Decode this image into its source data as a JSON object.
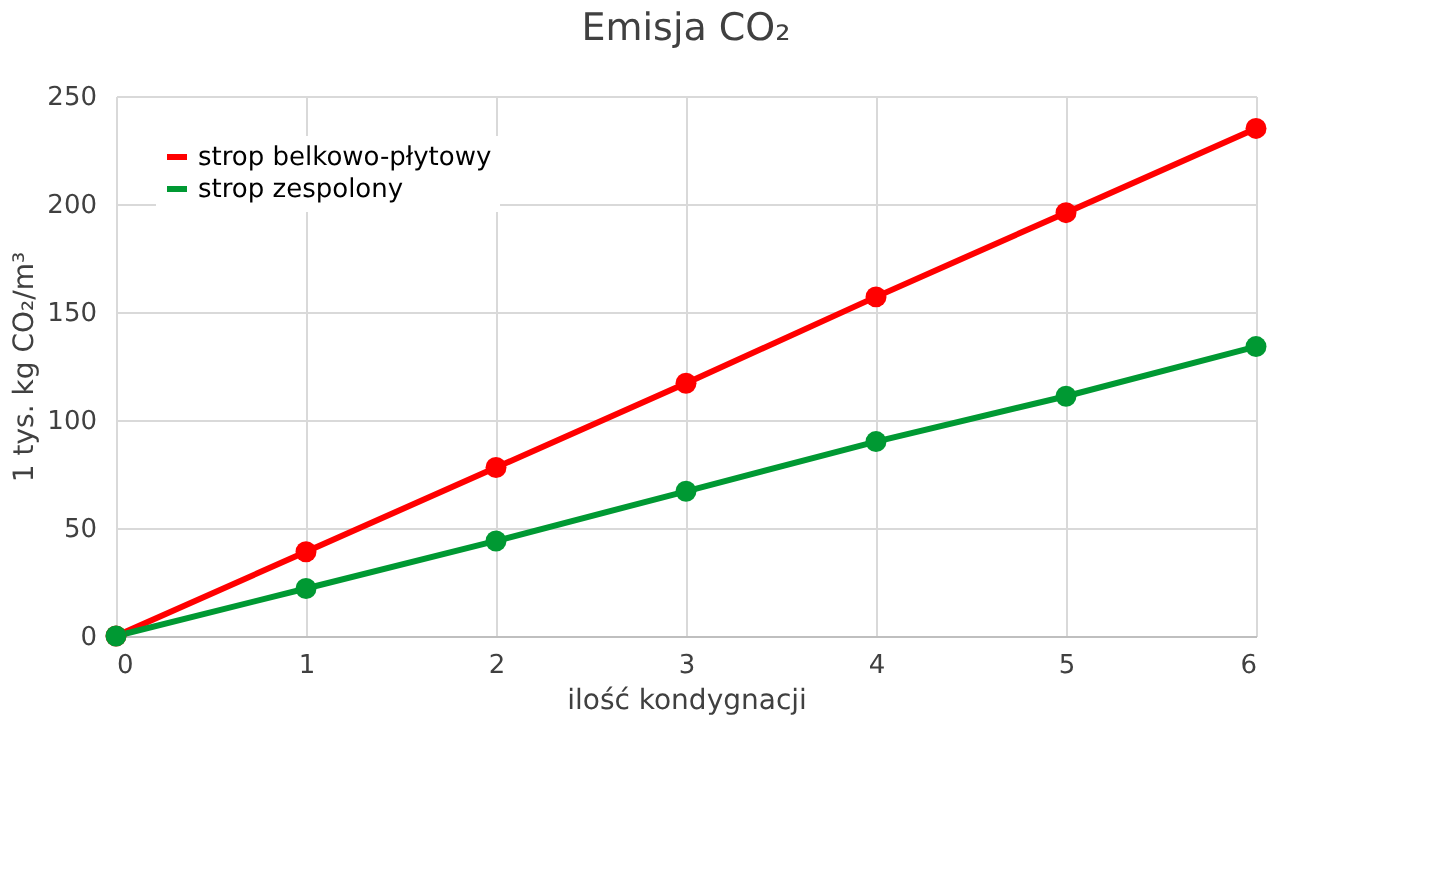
{
  "chart_data": {
    "type": "line",
    "title": "Emisja CO₂",
    "xlabel": "ilość kondygnacji",
    "ylabel": "1 tys. kg CO₂/m³",
    "x": [
      0,
      1,
      2,
      3,
      4,
      5,
      6
    ],
    "series": [
      {
        "name": "strop belkowo-płytowy",
        "color": "#ff0000",
        "values": [
          0,
          39,
          78,
          117,
          157,
          196,
          235
        ]
      },
      {
        "name": "strop zespolony",
        "color": "#009933",
        "values": [
          0,
          22,
          44,
          67,
          90,
          111,
          134
        ]
      }
    ],
    "xlim": [
      0,
      6
    ],
    "xticks": [
      0,
      1,
      2,
      3,
      4,
      5,
      6
    ],
    "ylim": [
      0,
      250
    ],
    "yticks": [
      0,
      50,
      100,
      150,
      200,
      250
    ],
    "grid": true,
    "legend": "top left",
    "marker": "circle",
    "line_style": "solid"
  }
}
